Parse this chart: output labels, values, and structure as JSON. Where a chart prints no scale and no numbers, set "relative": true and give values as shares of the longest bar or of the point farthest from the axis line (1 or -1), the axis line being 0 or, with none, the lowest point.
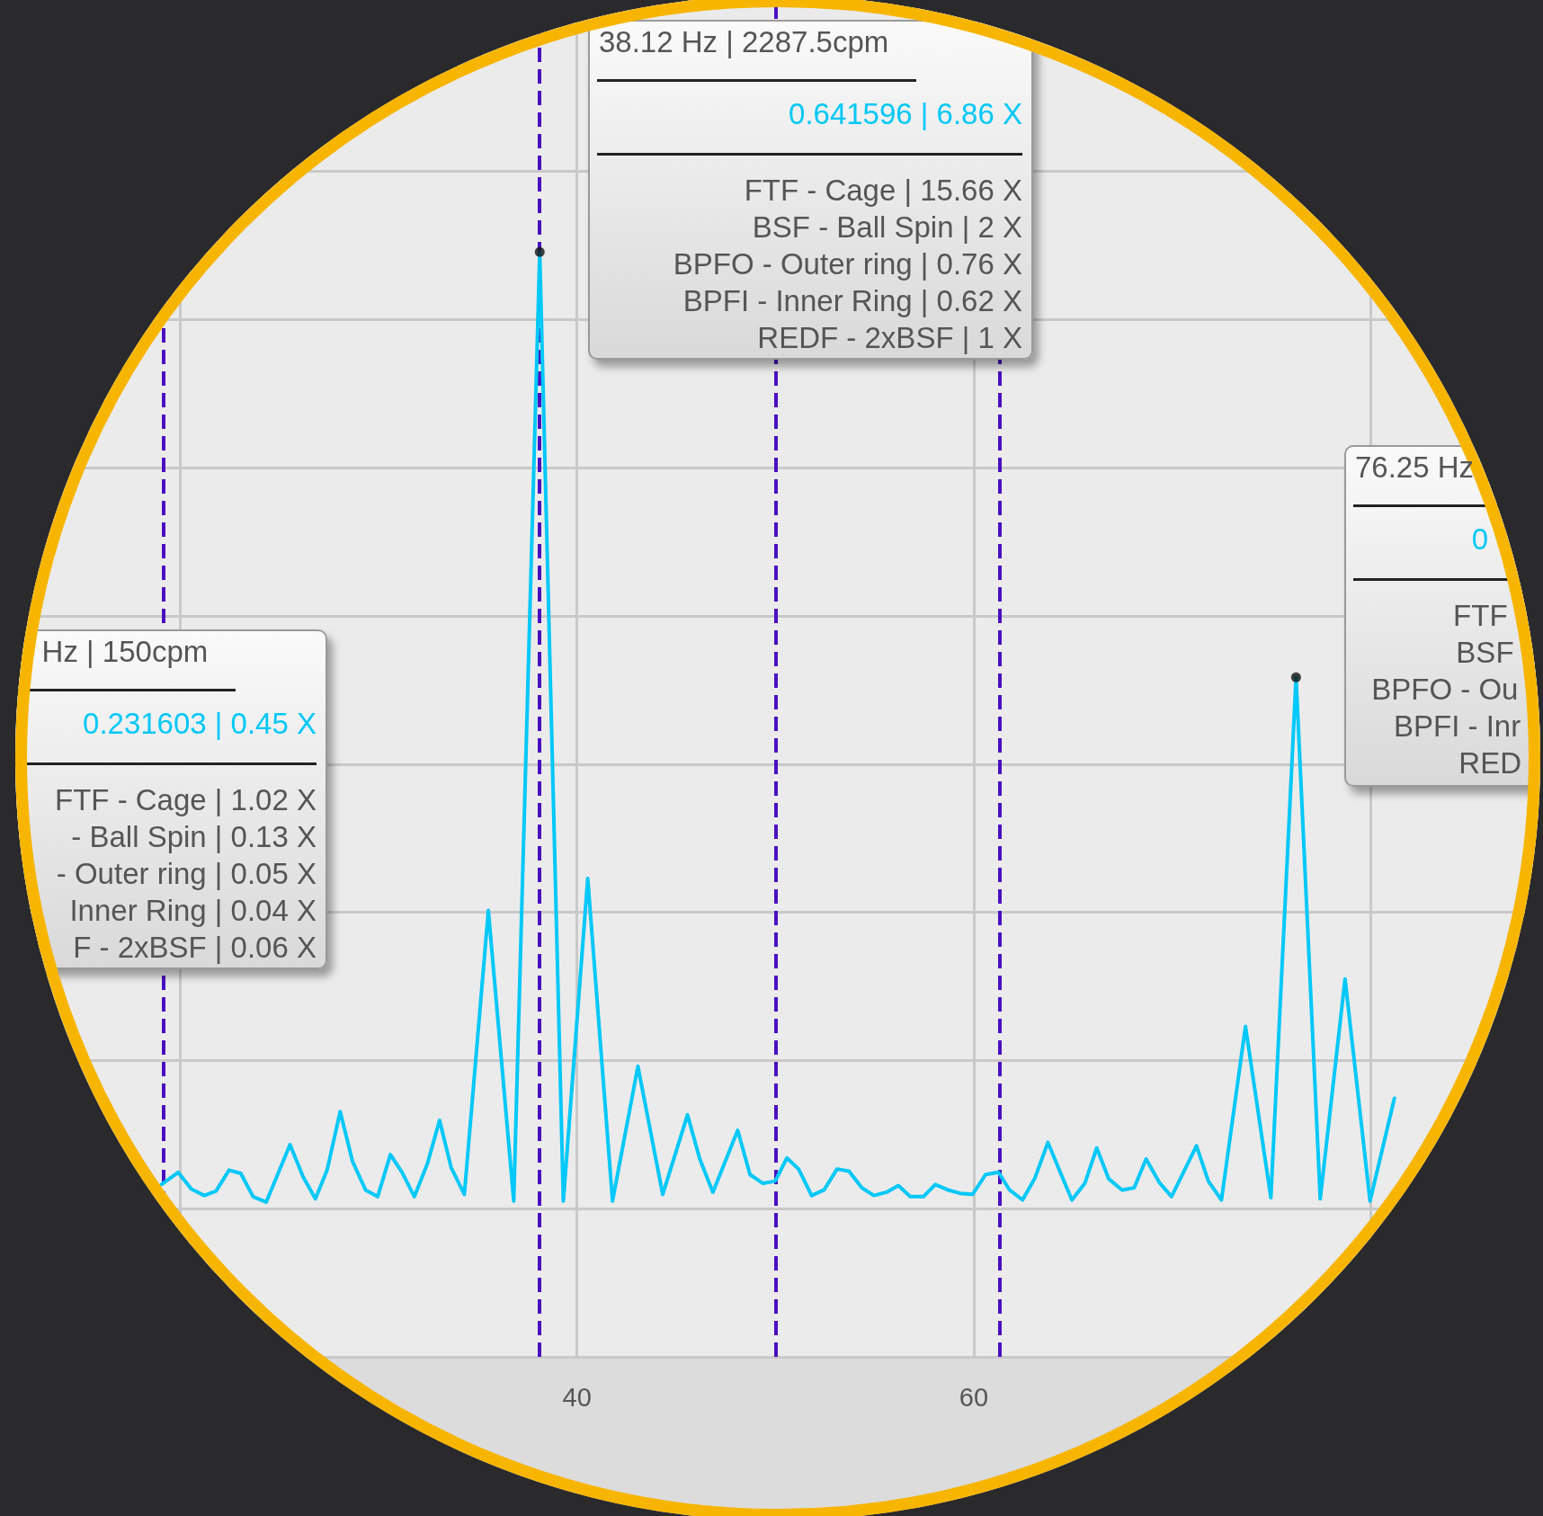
{
  "chart_data": {
    "type": "line",
    "relative": true,
    "xlim": [
      11,
      88.7
    ],
    "xticks": [
      {
        "value": 20,
        "label": null
      },
      40,
      60,
      {
        "value": 80,
        "label": null
      }
    ],
    "grid": true,
    "line_style": "solid",
    "series": [
      {
        "color": "#00c8f8",
        "x": [
          19.05,
          19.89,
          20.55,
          21.21,
          21.8,
          22.46,
          23.05,
          23.67,
          24.33,
          25.53,
          26.19,
          26.81,
          27.4,
          28.06,
          28.68,
          29.34,
          29.95,
          30.59,
          31.18,
          31.8,
          32.46,
          33.07,
          33.66,
          34.32,
          35.53,
          36.81,
          38.12,
          39.31,
          40.54,
          41.79,
          43.07,
          44.32,
          45.57,
          46.19,
          46.85,
          48.1,
          48.72,
          49.37,
          49.99,
          50.58,
          51.17,
          51.83,
          52.45,
          53.11,
          53.71,
          54.36,
          54.97,
          55.6,
          56.2,
          56.8,
          57.46,
          58.06,
          58.71,
          59.32,
          59.94,
          60.6,
          61.25,
          61.81,
          62.46,
          63.09,
          63.74,
          64.34,
          64.95,
          65.6,
          66.2,
          66.81,
          67.48,
          68.09,
          68.69,
          69.35,
          69.97,
          71.23,
          71.83,
          72.49,
          73.7,
          74.98,
          76.25,
          77.47,
          78.72,
          79.98,
          81.21
        ],
        "values": [
          0.156,
          0.167,
          0.152,
          0.146,
          0.15,
          0.169,
          0.166,
          0.145,
          0.14,
          0.192,
          0.163,
          0.143,
          0.169,
          0.222,
          0.177,
          0.151,
          0.145,
          0.183,
          0.167,
          0.145,
          0.175,
          0.214,
          0.171,
          0.147,
          0.404,
          0.141,
          1,
          0.141,
          0.433,
          0.141,
          0.263,
          0.147,
          0.219,
          0.179,
          0.149,
          0.205,
          0.165,
          0.157,
          0.159,
          0.18,
          0.17,
          0.146,
          0.151,
          0.17,
          0.168,
          0.153,
          0.146,
          0.149,
          0.155,
          0.145,
          0.145,
          0.156,
          0.151,
          0.148,
          0.147,
          0.165,
          0.167,
          0.151,
          0.142,
          0.162,
          0.194,
          0.168,
          0.142,
          0.157,
          0.189,
          0.161,
          0.151,
          0.153,
          0.179,
          0.158,
          0.145,
          0.191,
          0.159,
          0.142,
          0.299,
          0.144,
          0.615,
          0.143,
          0.342,
          0.141,
          0.234
        ]
      },
      {
        "type": "scatter",
        "color": "#111111",
        "x": [
          38.12,
          76.25
        ],
        "values": [
          1,
          0.615
        ]
      }
    ],
    "ref_lines": [
      {
        "axis": "x",
        "value": 19.14,
        "color": "#4a0fc0",
        "line_style": "dashed"
      },
      {
        "axis": "x",
        "value": 38.12,
        "color": "#4a0fc0",
        "line_style": "dashed"
      },
      {
        "axis": "x",
        "value": 50,
        "color": "#4a0fc0",
        "line_style": "dashed"
      },
      {
        "axis": "x",
        "value": 61.3,
        "color": "#4a0fc0",
        "line_style": "dashed"
      }
    ],
    "annotations": [
      "38.12 Hz | 2287.5cpm",
      "0.641596 | 6.86 X",
      "FTF - Cage | 15.66 X",
      "BSF - Ball Spin | 2 X",
      "BPFO - Outer ring | 0.76 X",
      "BPFI - Inner Ring | 0.62 X",
      "REDF - 2xBSF | 1 X",
      "Hz | 150cpm",
      "0.231603 | 0.45 X",
      "FTF - Cage | 1.02 X",
      "- Ball Spin | 0.13 X",
      "- Outer ring | 0.05 X",
      "Inner Ring | 0.04 X",
      "F - 2xBSF | 0.06 X",
      "76.25 Hz",
      "0",
      "FTF",
      "BSF",
      "BPFO - Ou",
      "BPFI - Inr",
      "RED"
    ]
  }
}
